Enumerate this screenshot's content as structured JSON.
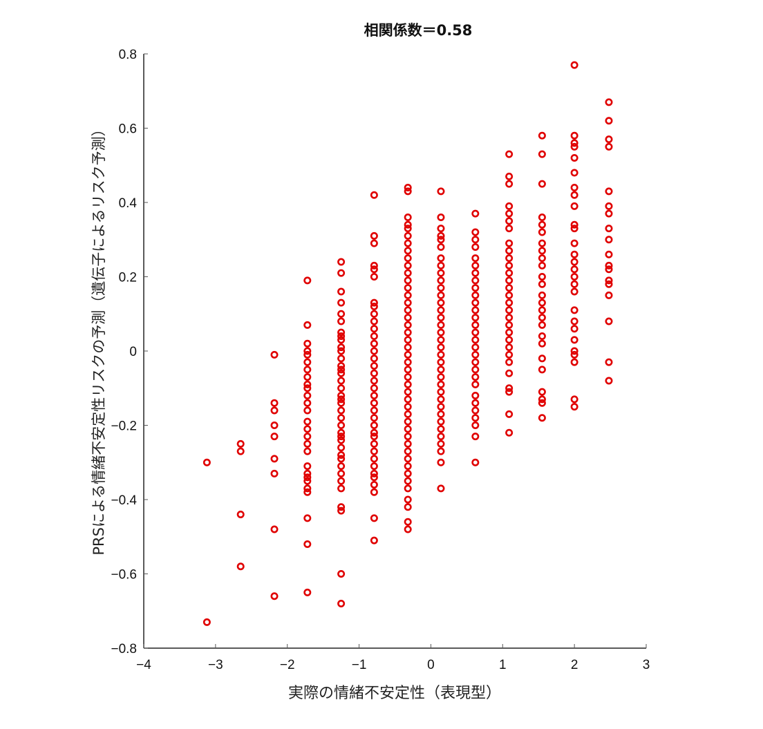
{
  "chart_data": {
    "type": "scatter",
    "title": "相関係数＝0.58",
    "xlabel": "実際の情緒不安定性（表現型）",
    "ylabel": "PRSによる情緒不安定性リスクの予測（遺伝子によるリスク予測）",
    "xlim": [
      -4,
      3
    ],
    "ylim": [
      -0.8,
      0.8
    ],
    "xticks": [
      -4,
      -3,
      -2,
      -1,
      0,
      1,
      2,
      3
    ],
    "xtick_labels": [
      "−4",
      "−3",
      "−2",
      "−1",
      "0",
      "1",
      "2",
      "3"
    ],
    "yticks": [
      -0.8,
      -0.6,
      -0.4,
      -0.2,
      0,
      0.2,
      0.4,
      0.6,
      0.8
    ],
    "ytick_labels": [
      "−0.8",
      "−0.6",
      "−0.4",
      "−0.2",
      "0",
      "0.2",
      "0.4",
      "0.6",
      "0.8"
    ],
    "grid": false,
    "marker": "open-circle",
    "marker_color": "#e00000",
    "correlation": 0.58,
    "columns": [
      {
        "x": -3.12,
        "y": [
          -0.3,
          -0.73
        ]
      },
      {
        "x": -2.65,
        "y": [
          -0.25,
          -0.27,
          -0.44,
          -0.58
        ]
      },
      {
        "x": -2.18,
        "y": [
          -0.01,
          -0.14,
          -0.16,
          -0.2,
          -0.23,
          -0.29,
          -0.33,
          -0.48,
          -0.66
        ]
      },
      {
        "x": -1.72,
        "y": [
          0.19,
          0.07,
          0.02,
          0.0,
          -0.01,
          -0.03,
          -0.05,
          -0.07,
          -0.09,
          -0.1,
          -0.12,
          -0.14,
          -0.16,
          -0.19,
          -0.21,
          -0.23,
          -0.25,
          -0.27,
          -0.31,
          -0.33,
          -0.34,
          -0.35,
          -0.37,
          -0.38,
          -0.45,
          -0.52,
          -0.65
        ]
      },
      {
        "x": -1.25,
        "y": [
          0.24,
          0.21,
          0.16,
          0.13,
          0.1,
          0.08,
          0.05,
          0.04,
          0.03,
          0.01,
          0.0,
          -0.02,
          -0.04,
          -0.05,
          -0.06,
          -0.08,
          -0.1,
          -0.12,
          -0.13,
          -0.14,
          -0.16,
          -0.18,
          -0.2,
          -0.22,
          -0.23,
          -0.24,
          -0.26,
          -0.28,
          -0.29,
          -0.31,
          -0.33,
          -0.35,
          -0.37,
          -0.42,
          -0.43,
          -0.6,
          -0.68
        ]
      },
      {
        "x": -0.79,
        "y": [
          0.42,
          0.31,
          0.29,
          0.23,
          0.22,
          0.2,
          0.13,
          0.12,
          0.1,
          0.08,
          0.06,
          0.04,
          0.02,
          0.0,
          -0.02,
          -0.04,
          -0.06,
          -0.08,
          -0.1,
          -0.12,
          -0.14,
          -0.16,
          -0.18,
          -0.2,
          -0.22,
          -0.23,
          -0.25,
          -0.27,
          -0.29,
          -0.31,
          -0.33,
          -0.34,
          -0.36,
          -0.38,
          -0.45,
          -0.51
        ]
      },
      {
        "x": -0.32,
        "y": [
          0.44,
          0.43,
          0.36,
          0.34,
          0.33,
          0.31,
          0.29,
          0.27,
          0.25,
          0.23,
          0.21,
          0.19,
          0.17,
          0.15,
          0.13,
          0.11,
          0.09,
          0.07,
          0.05,
          0.03,
          0.01,
          -0.01,
          -0.03,
          -0.05,
          -0.07,
          -0.09,
          -0.11,
          -0.13,
          -0.15,
          -0.17,
          -0.19,
          -0.21,
          -0.23,
          -0.25,
          -0.27,
          -0.29,
          -0.31,
          -0.33,
          -0.35,
          -0.37,
          -0.4,
          -0.42,
          -0.46,
          -0.48
        ]
      },
      {
        "x": 0.14,
        "y": [
          0.43,
          0.36,
          0.33,
          0.31,
          0.3,
          0.28,
          0.25,
          0.23,
          0.21,
          0.19,
          0.17,
          0.15,
          0.13,
          0.11,
          0.09,
          0.07,
          0.05,
          0.03,
          0.01,
          -0.01,
          -0.03,
          -0.05,
          -0.07,
          -0.09,
          -0.11,
          -0.13,
          -0.15,
          -0.17,
          -0.19,
          -0.21,
          -0.23,
          -0.25,
          -0.27,
          -0.3,
          -0.37
        ]
      },
      {
        "x": 0.62,
        "y": [
          0.37,
          0.32,
          0.3,
          0.28,
          0.25,
          0.23,
          0.21,
          0.19,
          0.17,
          0.15,
          0.13,
          0.11,
          0.09,
          0.07,
          0.05,
          0.03,
          0.01,
          -0.01,
          -0.03,
          -0.05,
          -0.07,
          -0.09,
          -0.12,
          -0.14,
          -0.16,
          -0.18,
          -0.2,
          -0.23,
          -0.3
        ]
      },
      {
        "x": 1.09,
        "y": [
          0.53,
          0.47,
          0.45,
          0.39,
          0.37,
          0.35,
          0.33,
          0.29,
          0.27,
          0.25,
          0.23,
          0.21,
          0.19,
          0.17,
          0.15,
          0.13,
          0.11,
          0.09,
          0.07,
          0.05,
          0.03,
          0.01,
          -0.01,
          -0.03,
          -0.06,
          -0.1,
          -0.11,
          -0.17,
          -0.22
        ]
      },
      {
        "x": 1.55,
        "y": [
          0.58,
          0.53,
          0.45,
          0.36,
          0.34,
          0.32,
          0.29,
          0.27,
          0.25,
          0.23,
          0.2,
          0.18,
          0.15,
          0.13,
          0.11,
          0.09,
          0.07,
          0.04,
          0.02,
          -0.02,
          -0.05,
          -0.11,
          -0.13,
          -0.14,
          -0.18
        ]
      },
      {
        "x": 2.0,
        "y": [
          0.77,
          0.58,
          0.56,
          0.55,
          0.52,
          0.48,
          0.44,
          0.42,
          0.39,
          0.34,
          0.33,
          0.29,
          0.26,
          0.24,
          0.22,
          0.2,
          0.18,
          0.16,
          0.11,
          0.08,
          0.06,
          0.03,
          0.0,
          -0.01,
          -0.03,
          -0.13,
          -0.15
        ]
      },
      {
        "x": 2.48,
        "y": [
          0.67,
          0.62,
          0.57,
          0.55,
          0.43,
          0.39,
          0.37,
          0.33,
          0.3,
          0.26,
          0.23,
          0.22,
          0.19,
          0.18,
          0.15,
          0.08,
          -0.03,
          -0.08
        ]
      }
    ]
  }
}
